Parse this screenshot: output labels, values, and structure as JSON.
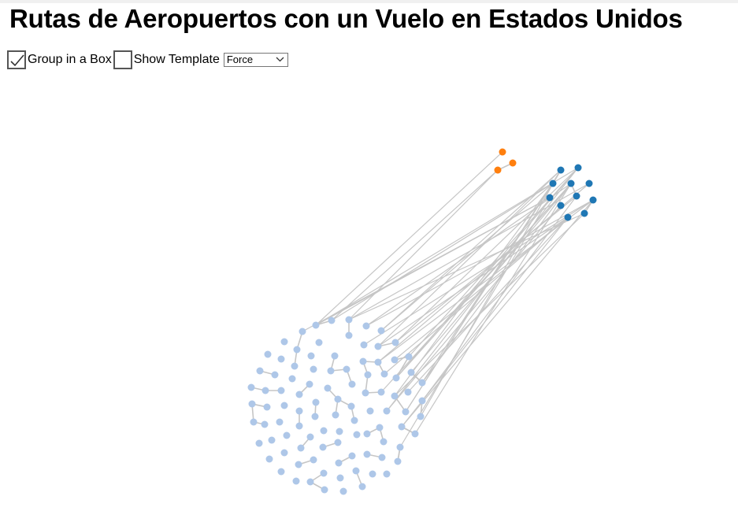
{
  "page": {
    "title": "Rutas de Aeropuertos con un Vuelo en Estados Unidos"
  },
  "controls": {
    "group_in_box": {
      "label": "Group in a Box",
      "checked": true
    },
    "show_template": {
      "label": "Show Template",
      "checked": false
    },
    "layout_select": {
      "value": "Force"
    }
  },
  "graph": {
    "colors": {
      "group_orange": "#ff7f0e",
      "group_blue": "#1f77b4",
      "group_light": "#aec7e8",
      "link": "#c6c6c6"
    }
  }
}
